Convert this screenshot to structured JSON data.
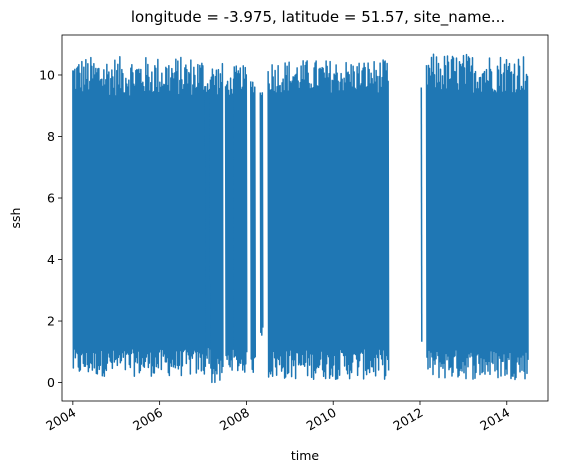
{
  "chart_data": {
    "type": "line",
    "title": "longitude = -3.975, latitude = 51.57, site_name...",
    "xlabel": "time",
    "ylabel": "ssh",
    "xlim": [
      2003.75,
      2014.95
    ],
    "ylim": [
      -0.6,
      11.3
    ],
    "x_ticks": [
      2004,
      2006,
      2008,
      2010,
      2012,
      2014
    ],
    "x_tick_labels": [
      "2004",
      "2006",
      "2008",
      "2010",
      "2012",
      "2014"
    ],
    "y_ticks": [
      0,
      2,
      4,
      6,
      8,
      10
    ],
    "y_tick_labels": [
      "0",
      "2",
      "4",
      "6",
      "8",
      "10"
    ],
    "grid": false,
    "legend": "none",
    "series": [
      {
        "color": "#1f77b4",
        "segments": [
          {
            "start": 2004.0,
            "end": 2007.06,
            "high_range": [
              9.3,
              10.6
            ],
            "low_range": [
              0.2,
              1.1
            ]
          },
          {
            "start": 2007.06,
            "end": 2007.17,
            "high_range": [
              9.4,
              9.9
            ],
            "low_range": [
              0.6,
              1.2
            ]
          },
          {
            "start": 2007.17,
            "end": 2007.45,
            "high_range": [
              9.3,
              10.4
            ],
            "low_range": [
              -0.1,
              0.8
            ]
          },
          {
            "start": 2007.52,
            "end": 2007.72,
            "high_range": [
              9.3,
              10.0
            ],
            "low_range": [
              0.4,
              1.1
            ]
          },
          {
            "start": 2007.72,
            "end": 2008.0,
            "high_range": [
              9.5,
              10.3
            ],
            "low_range": [
              0.3,
              1.0
            ]
          },
          {
            "start": 2008.1,
            "end": 2008.2,
            "high_range": [
              9.4,
              9.9
            ],
            "low_range": [
              0.3,
              0.9
            ]
          },
          {
            "start": 2008.32,
            "end": 2008.37,
            "high_range": [
              9.3,
              9.5
            ],
            "low_range": [
              1.5,
              2.0
            ]
          },
          {
            "start": 2008.5,
            "end": 2011.28,
            "high_range": [
              9.4,
              10.5
            ],
            "low_range": [
              0.1,
              1.1
            ]
          },
          {
            "start": 2012.03,
            "end": 2012.05,
            "high_range": [
              9.4,
              9.6
            ],
            "low_range": [
              1.2,
              1.4
            ]
          },
          {
            "start": 2012.15,
            "end": 2014.5,
            "high_range": [
              9.4,
              10.7
            ],
            "low_range": [
              0.1,
              1.1
            ]
          }
        ]
      }
    ]
  }
}
